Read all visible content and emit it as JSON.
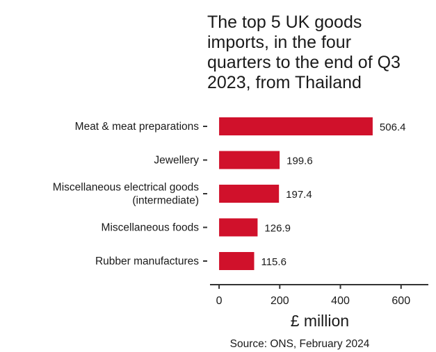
{
  "chart_data": {
    "type": "bar",
    "orientation": "horizontal",
    "title_lines": [
      "The top 5 UK goods",
      "imports, in the four",
      "quarters to the end of Q3",
      "2023, from Thailand"
    ],
    "categories": [
      [
        "Meat & meat preparations"
      ],
      [
        "Jewellery"
      ],
      [
        "Miscellaneous electrical goods",
        "(intermediate)"
      ],
      [
        "Miscellaneous foods"
      ],
      [
        "Rubber manufactures"
      ]
    ],
    "values": [
      506.4,
      199.6,
      197.4,
      126.9,
      115.6
    ],
    "value_labels": [
      "506.4",
      "199.6",
      "197.4",
      "126.9",
      "115.6"
    ],
    "xlabel": "£ million",
    "xlim": [
      -30,
      690
    ],
    "xticks": [
      0,
      200,
      400,
      600
    ],
    "xtick_labels": [
      "0",
      "200",
      "400",
      "600"
    ],
    "grid": false,
    "bar_color": "#d0112b",
    "source": "Source: ONS, February 2024"
  }
}
